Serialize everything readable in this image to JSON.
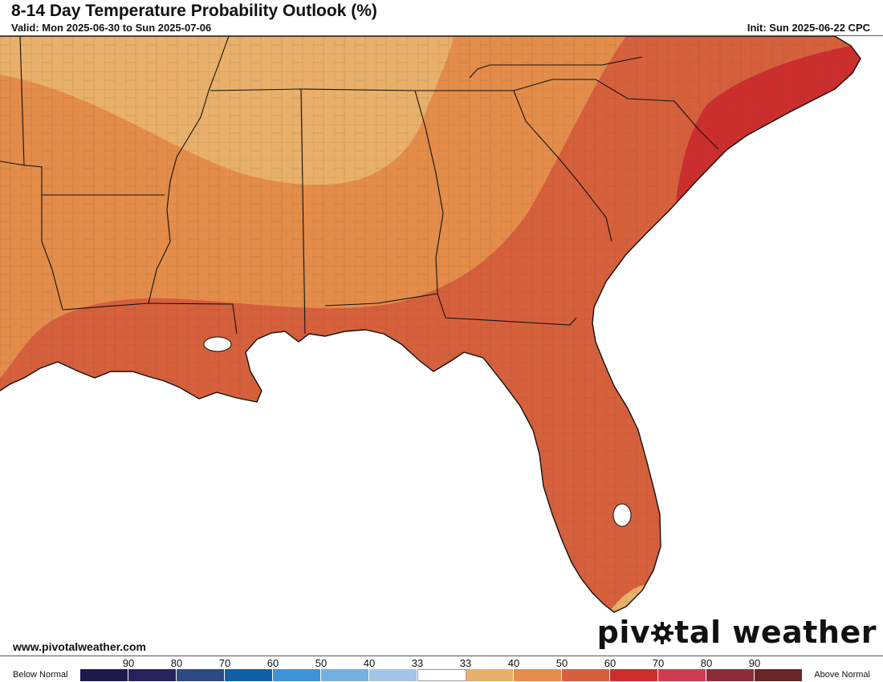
{
  "header": {
    "title": "8-14 Day Temperature Probability Outlook (%)",
    "valid": "Valid: Mon 2025-06-30 to Sun 2025-07-06",
    "init": "Init: Sun 2025-06-22 CPC"
  },
  "footer": {
    "url": "www.pivotalweather.com",
    "logo_part1": "piv",
    "logo_part2": "tal weather"
  },
  "legend": {
    "below_label": "Below Normal",
    "above_label": "Above Normal",
    "ticks": [
      "90",
      "80",
      "70",
      "60",
      "50",
      "40",
      "33",
      "33",
      "40",
      "50",
      "60",
      "70",
      "80",
      "90"
    ],
    "colors": [
      "#1b1a4a",
      "#27215e",
      "#2e4a84",
      "#1060a8",
      "#3d93d8",
      "#74b0e0",
      "#a3c4e6",
      "#ffffff",
      "#e8b06a",
      "#e48d4a",
      "#d6603c",
      "#cc2e2e",
      "#cf3c4e",
      "#8e2d3a",
      "#6b2428"
    ]
  },
  "map": {
    "region": "Southeastern United States",
    "colors": {
      "ocean": "#ffffff",
      "cat_33_40": "#e8b06a",
      "cat_40_50": "#e48d4a",
      "cat_50_60": "#d6603c",
      "cat_60_70": "#cc2e2e",
      "borders": "#111111"
    }
  }
}
